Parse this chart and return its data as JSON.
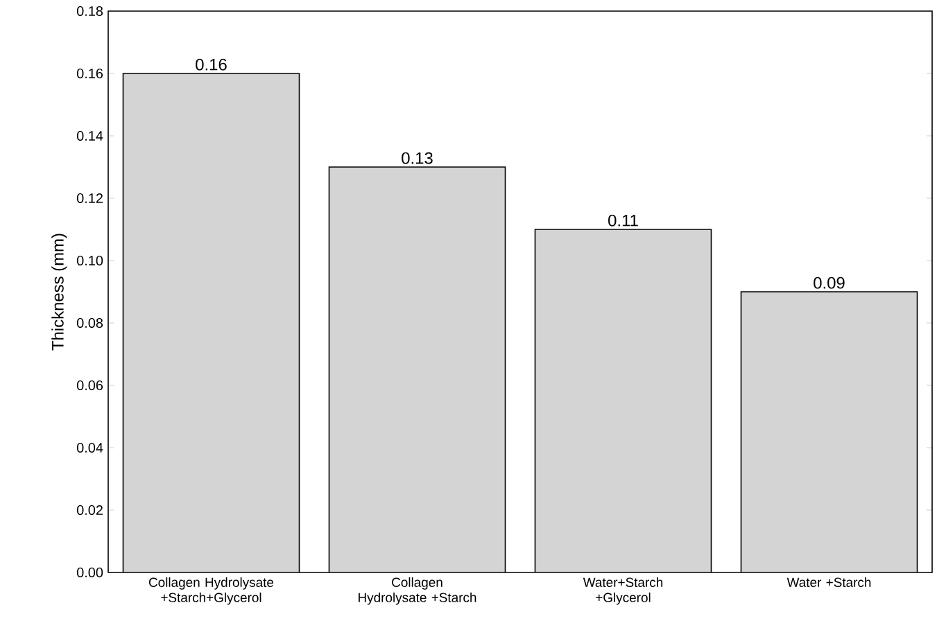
{
  "chart_data": {
    "type": "bar",
    "ylabel": "Thickness (mm)",
    "categories": [
      "Collagen Hydrolysate +Starch+Glycerol",
      "Collagen Hydrolysate +Starch",
      "Water+Starch +Glycerol",
      "Water +Starch"
    ],
    "values": [
      0.16,
      0.13,
      0.11,
      0.09
    ],
    "color": "#d4d4d4",
    "data_labels": true,
    "ylim": [
      0,
      0.18
    ],
    "yticks": [
      {
        "value": 0,
        "label": "0.00"
      },
      0.02,
      0.04,
      0.06,
      0.08,
      {
        "value": 0.1,
        "label": "0.10"
      },
      0.12,
      0.14,
      0.16,
      0.18
    ],
    "grid": false
  }
}
